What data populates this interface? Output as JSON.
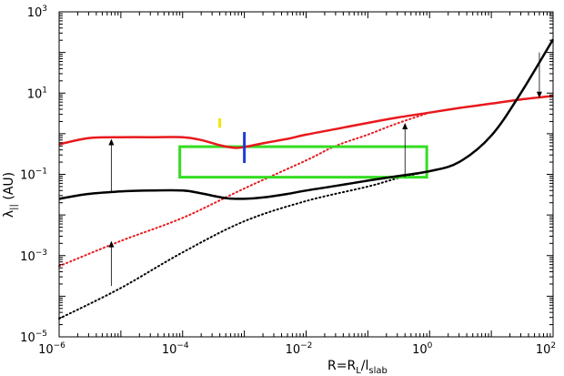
{
  "chart_data": {
    "type": "line",
    "title": "",
    "x_scale": "log",
    "y_scale": "log",
    "xlim": [
      1e-06,
      100
    ],
    "ylim": [
      1e-05,
      1000
    ],
    "grid": false,
    "xlabel": {
      "main": "R=R",
      "sub1": "L",
      "mid": "/l",
      "sub2": "slab"
    },
    "ylabel": {
      "main": "λ",
      "sub": "||",
      "unit": " (AU)"
    },
    "x_ticks": [
      {
        "value": 1e-06,
        "base": "10",
        "exp": "−6"
      },
      {
        "value": 0.0001,
        "base": "10",
        "exp": "−4"
      },
      {
        "value": 0.01,
        "base": "10",
        "exp": "−2"
      },
      {
        "value": 1,
        "base": "10",
        "exp": "0"
      },
      {
        "value": 100,
        "base": "10",
        "exp": "2"
      }
    ],
    "y_ticks": [
      {
        "value": 1e-05,
        "base": "10",
        "exp": "−5"
      },
      {
        "value": 0.001,
        "base": "10",
        "exp": "−3"
      },
      {
        "value": 0.1,
        "base": "10",
        "exp": "−1"
      },
      {
        "value": 10,
        "base": "10",
        "exp": "1"
      },
      {
        "value": 1000,
        "base": "10",
        "exp": "3"
      }
    ],
    "series": [
      {
        "color": "#e8191d",
        "style": "solid",
        "x": [
          1e-06,
          3e-06,
          1e-05,
          3e-05,
          0.0001,
          0.0002,
          0.0004,
          0.0007,
          0.001,
          0.002,
          0.005,
          0.01,
          0.03,
          0.1,
          0.3,
          1,
          3,
          10,
          30,
          100
        ],
        "y": [
          0.55,
          0.78,
          0.82,
          0.82,
          0.82,
          0.7,
          0.52,
          0.45,
          0.47,
          0.58,
          0.75,
          0.95,
          1.3,
          1.85,
          2.5,
          3.3,
          4.3,
          5.5,
          7.0,
          8.5
        ]
      },
      {
        "color": "#000000",
        "style": "solid",
        "x": [
          1e-06,
          3e-06,
          1e-05,
          3e-05,
          0.0001,
          0.0002,
          0.0005,
          0.001,
          0.002,
          0.005,
          0.01,
          0.03,
          0.1,
          0.3,
          1,
          3,
          10,
          30,
          100
        ],
        "y": [
          0.025,
          0.033,
          0.038,
          0.04,
          0.04,
          0.034,
          0.026,
          0.025,
          0.027,
          0.033,
          0.04,
          0.052,
          0.07,
          0.09,
          0.12,
          0.2,
          0.9,
          10,
          210
        ]
      },
      {
        "color": "#e8191d",
        "style": "dotted",
        "x": [
          1e-06,
          1e-05,
          0.0001,
          0.001,
          0.01,
          0.03,
          0.1,
          0.3,
          1
        ],
        "y": [
          0.00055,
          0.0023,
          0.0085,
          0.045,
          0.22,
          0.5,
          0.95,
          1.8,
          3.3
        ]
      },
      {
        "color": "#000000",
        "style": "dotted",
        "x": [
          1e-06,
          1e-05,
          0.0001,
          0.001,
          0.01,
          0.1,
          0.3,
          1
        ],
        "y": [
          2.8e-05,
          0.00016,
          0.0012,
          0.007,
          0.022,
          0.05,
          0.08,
          0.12
        ]
      }
    ],
    "arrows": [
      {
        "x": 7e-06,
        "y_from": 0.037,
        "y_to": 0.75,
        "color": "#000000"
      },
      {
        "x": 7e-06,
        "y_from": 0.00018,
        "y_to": 0.0023,
        "color": "#000000"
      },
      {
        "x": 0.4,
        "y_from": 0.085,
        "y_to": 1.85,
        "color": "#000000"
      },
      {
        "x": 60,
        "y_from": 100,
        "y_to": 7.5,
        "color": "#000000"
      }
    ],
    "green_box": {
      "x": [
        9e-05,
        0.9
      ],
      "y": [
        0.085,
        0.48
      ],
      "color": "#33dd22"
    },
    "blue_mark": {
      "x": 0.001,
      "y": [
        0.19,
        1.1
      ],
      "color": "#1f3cd9"
    },
    "yellow_mark": {
      "x": 0.0004,
      "y": [
        1.4,
        2.4
      ],
      "color": "#f2e600"
    }
  }
}
